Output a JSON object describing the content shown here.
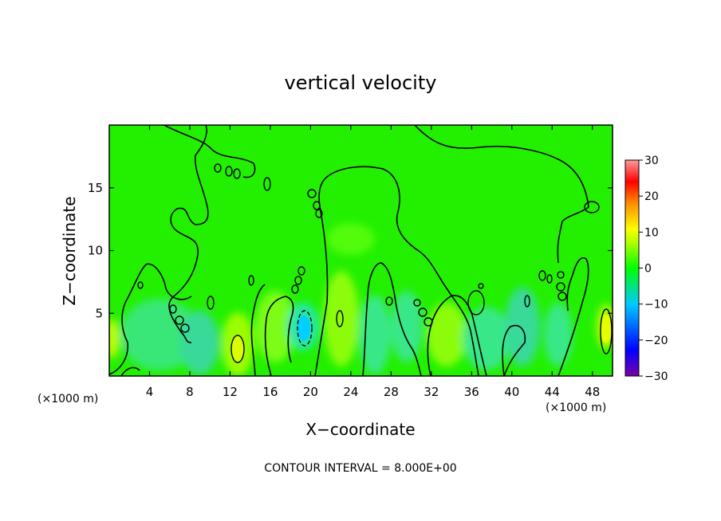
{
  "chart_data": {
    "type": "heatmap",
    "title": "vertical velocity",
    "xlabel": "X−coordinate",
    "ylabel": "Z−coordinate",
    "x_unit_left": "(×1000 m)",
    "x_unit_right": "(×1000 m)",
    "xlim": [
      0,
      50
    ],
    "ylim": [
      0,
      20
    ],
    "xticks": [
      4,
      8,
      12,
      16,
      20,
      24,
      28,
      32,
      36,
      40,
      44,
      48
    ],
    "yticks": [
      5,
      10,
      15
    ],
    "colorbar": {
      "range": [
        -30,
        30
      ],
      "ticks": [
        30,
        20,
        10,
        0,
        -10,
        -20,
        -30
      ],
      "tick_labels": [
        "30",
        "20",
        "10",
        "0",
        "−10",
        "−20",
        "−30"
      ],
      "colors": [
        "#7a00a8",
        "#0000ff",
        "#00c8ff",
        "#00ff00",
        "#ffff00",
        "#ff7f00",
        "#ff0000",
        "#ff8c8c"
      ]
    },
    "field_background_value": 0,
    "footer": "CONTOUR INTERVAL = 8.000E+00",
    "contour_interval": 8.0
  }
}
